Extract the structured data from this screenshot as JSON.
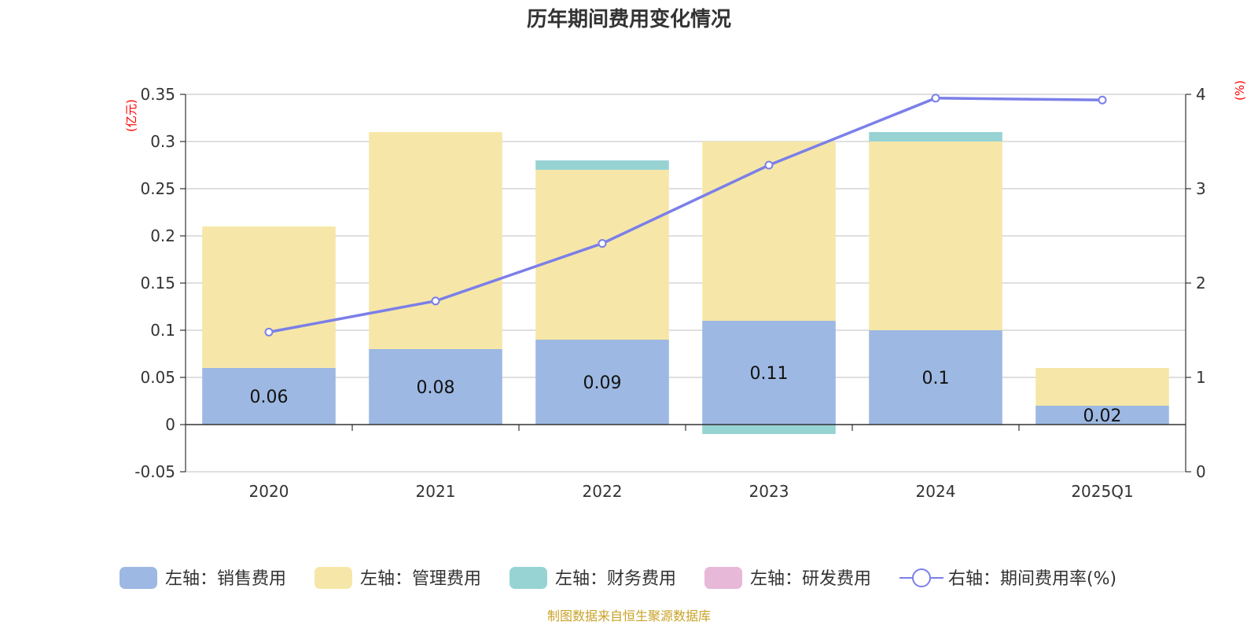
{
  "chart_data": {
    "type": "bar",
    "title": "历年期间费用变化情况",
    "categories": [
      "2020",
      "2021",
      "2022",
      "2023",
      "2024",
      "2025Q1"
    ],
    "left_axis": {
      "unit": "(亿元)",
      "ylim": [
        -0.05,
        0.35
      ],
      "ticks": [
        -0.05,
        0,
        0.05,
        0.1,
        0.15,
        0.2,
        0.25,
        0.3,
        0.35
      ],
      "tick_labels": [
        "-0.05",
        "0",
        "0.05",
        "0.1",
        "0.15",
        "0.2",
        "0.25",
        "0.3",
        "0.35"
      ]
    },
    "right_axis": {
      "unit": "(%)",
      "ylim": [
        0,
        4
      ],
      "ticks": [
        0,
        1,
        2,
        3,
        4
      ],
      "tick_labels": [
        "0",
        "1",
        "2",
        "3",
        "4"
      ]
    },
    "series": [
      {
        "name": "左轴：销售费用",
        "type": "bar",
        "axis": "left",
        "color": "#9db8e2",
        "values": [
          0.06,
          0.08,
          0.09,
          0.11,
          0.1,
          0.02
        ],
        "labels": [
          "0.06",
          "0.08",
          "0.09",
          "0.11",
          "0.1",
          "0.02"
        ]
      },
      {
        "name": "左轴：管理费用",
        "type": "bar",
        "axis": "left",
        "color": "#f6e7a8",
        "values": [
          0.15,
          0.23,
          0.18,
          0.19,
          0.2,
          0.04
        ]
      },
      {
        "name": "左轴：财务费用",
        "type": "bar",
        "axis": "left",
        "color": "#98d3d4",
        "values": [
          0,
          0,
          0.01,
          -0.01,
          0.01,
          0
        ]
      },
      {
        "name": "左轴：研发费用",
        "type": "bar",
        "axis": "left",
        "color": "#e8b8d8",
        "values": [
          0,
          0,
          0,
          0,
          0,
          0
        ]
      },
      {
        "name": "右轴：期间费用率(%)",
        "type": "line",
        "axis": "right",
        "color": "#7b7fe8",
        "values": [
          1.48,
          1.81,
          2.42,
          3.25,
          3.96,
          3.94
        ]
      }
    ],
    "grid": true,
    "legend_position": "bottom"
  },
  "source": "制图数据来自恒生聚源数据库"
}
